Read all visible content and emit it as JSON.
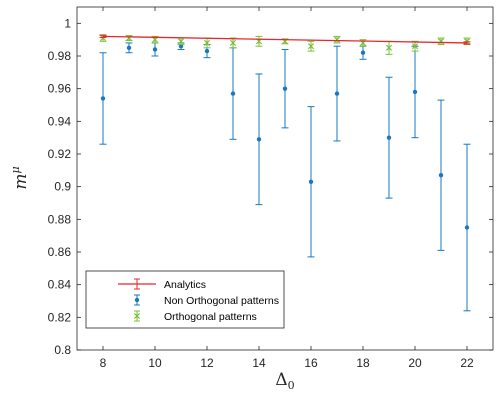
{
  "chart_data": {
    "type": "scatter",
    "xlabel_main": "Δ",
    "xlabel_sub": "0",
    "ylabel_main": "m",
    "ylabel_sup": "μ",
    "xlim": [
      7,
      23
    ],
    "ylim": [
      0.8,
      1.01
    ],
    "xticks": [
      8,
      10,
      12,
      14,
      16,
      18,
      20,
      22
    ],
    "xtick_labels": [
      "8",
      "10",
      "12",
      "14",
      "16",
      "18",
      "20",
      "22"
    ],
    "yticks": [
      0.8,
      0.82,
      0.84,
      0.86,
      0.88,
      0.9,
      0.92,
      0.94,
      0.96,
      0.98,
      1
    ],
    "ytick_labels": [
      "0.8",
      "0.82",
      "0.84",
      "0.86",
      "0.88",
      "0.9",
      "0.92",
      "0.94",
      "0.96",
      "0.98",
      "1"
    ],
    "grid": false,
    "legend_position": "bottom-left",
    "series": [
      {
        "name": "Analytics",
        "style": "line",
        "color": "#e8262b",
        "x": [
          8,
          22
        ],
        "y": [
          0.992,
          0.988
        ],
        "err": [
          0.0007,
          0.0007
        ]
      },
      {
        "name": "Non Orthogonal patterns",
        "style": "dot",
        "color": "#1a78c0",
        "x": [
          8,
          9,
          10,
          11,
          12,
          13,
          14,
          15,
          16,
          17,
          18,
          19,
          20,
          21,
          22
        ],
        "y": [
          0.954,
          0.985,
          0.984,
          0.986,
          0.983,
          0.957,
          0.929,
          0.96,
          0.903,
          0.957,
          0.982,
          0.93,
          0.958,
          0.907,
          0.875
        ],
        "err": [
          0.028,
          0.003,
          0.004,
          0.002,
          0.004,
          0.028,
          0.04,
          0.024,
          0.046,
          0.029,
          0.004,
          0.037,
          0.028,
          0.046,
          0.051
        ]
      },
      {
        "name": "Orthogonal patterns",
        "style": "x",
        "color": "#77c23a",
        "x": [
          8,
          9,
          10,
          11,
          12,
          13,
          14,
          15,
          16,
          17,
          18,
          19,
          20,
          21,
          22
        ],
        "y": [
          0.991,
          0.991,
          0.99,
          0.989,
          0.988,
          0.988,
          0.989,
          0.989,
          0.986,
          0.99,
          0.988,
          0.985,
          0.986,
          0.989,
          0.989
        ],
        "err": [
          0.002,
          0.0015,
          0.002,
          0.002,
          0.003,
          0.003,
          0.003,
          0.0015,
          0.003,
          0.002,
          0.002,
          0.004,
          0.003,
          0.002,
          0.002
        ]
      }
    ]
  }
}
